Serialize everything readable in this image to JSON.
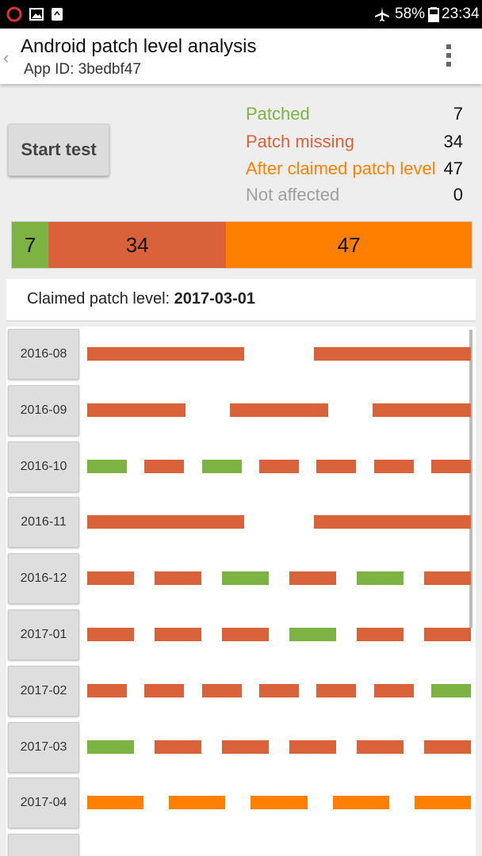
{
  "status_bar": {
    "battery": "58%",
    "time": "23:34",
    "icons": [
      "notification-icon",
      "image-icon",
      "recycle-icon",
      "airplane-mode-icon",
      "battery-icon"
    ]
  },
  "header": {
    "title": "Android patch level analysis",
    "subtitle": "App ID: 3bedbf47"
  },
  "actions": {
    "start_test": "Start test"
  },
  "colors": {
    "patched": "#7cb342",
    "missing": "#d9623a",
    "after": "#ff8000",
    "not_affected": "#9e9e9e"
  },
  "stats": [
    {
      "label": "Patched",
      "value": "7",
      "key": "patched"
    },
    {
      "label": "Patch missing",
      "value": "34",
      "key": "missing"
    },
    {
      "label": "After claimed patch level",
      "value": "47",
      "key": "after"
    },
    {
      "label": "Not affected",
      "value": "0",
      "key": "not_affected"
    }
  ],
  "summary_bar": [
    {
      "value": "7",
      "key": "patched"
    },
    {
      "value": "34",
      "key": "missing"
    },
    {
      "value": "47",
      "key": "after"
    }
  ],
  "claimed": {
    "label": "Claimed patch level:",
    "value": "2017-03-01"
  },
  "rows": [
    {
      "label": "2016-08",
      "cells": [
        "missing",
        "missing"
      ]
    },
    {
      "label": "2016-09",
      "cells": [
        "missing",
        "missing",
        "missing"
      ]
    },
    {
      "label": "2016-10",
      "cells": [
        "patched",
        "missing",
        "patched",
        "missing",
        "missing",
        "missing",
        "missing"
      ]
    },
    {
      "label": "2016-11",
      "cells": [
        "missing",
        "missing"
      ]
    },
    {
      "label": "2016-12",
      "cells": [
        "missing",
        "missing",
        "patched",
        "missing",
        "patched",
        "missing"
      ]
    },
    {
      "label": "2017-01",
      "cells": [
        "missing",
        "missing",
        "missing",
        "patched",
        "missing",
        "missing"
      ]
    },
    {
      "label": "2017-02",
      "cells": [
        "missing",
        "missing",
        "missing",
        "missing",
        "missing",
        "missing",
        "patched"
      ]
    },
    {
      "label": "2017-03",
      "cells": [
        "patched",
        "missing",
        "missing",
        "missing",
        "missing",
        "missing"
      ]
    },
    {
      "label": "2017-04",
      "cells": [
        "after",
        "after",
        "after",
        "after",
        "after"
      ]
    }
  ]
}
